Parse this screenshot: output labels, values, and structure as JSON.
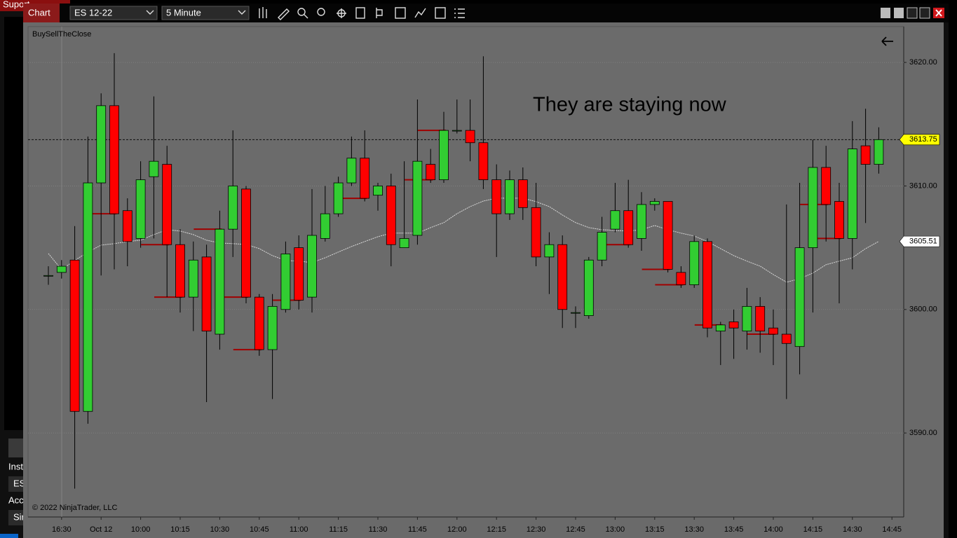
{
  "window": {
    "tab": "Chart",
    "instrument": "ES 12-22",
    "interval": "5 Minute"
  },
  "background_window": {
    "title": "Suport",
    "labels": [
      "Inst",
      "ES",
      "Acco",
      "Sir"
    ]
  },
  "chart_data": {
    "type": "candlestick",
    "indicator_label": "BuySellTheClose",
    "copyright": "© 2022 NinjaTrader, LLC",
    "annotation": "They are staying now",
    "categories": [
      null,
      "16:30",
      null,
      null,
      "Oct 12",
      null,
      null,
      "10:00",
      null,
      null,
      "10:15",
      null,
      null,
      "10:30",
      null,
      null,
      "10:45",
      null,
      null,
      "11:00",
      null,
      null,
      "11:15",
      null,
      null,
      "11:30",
      null,
      null,
      "11:45",
      null,
      null,
      "12:00",
      null,
      null,
      "12:15",
      null,
      null,
      "12:30",
      null,
      null,
      "12:45",
      null,
      null,
      "13:00",
      null,
      null,
      "13:15",
      null,
      null,
      "13:30",
      null,
      null,
      "13:45",
      null,
      null,
      "14:00",
      null,
      null,
      "14:15",
      null,
      null,
      "14:30",
      null,
      null,
      "14:45"
    ],
    "open": [
      3602.75,
      3603,
      3604,
      3591.75,
      3610.25,
      3616.5,
      3608,
      3605.75,
      3610.75,
      3611.75,
      3605.25,
      3601,
      3604.25,
      3598,
      3606.5,
      3609.75,
      3601,
      3596.75,
      3600,
      3605,
      3601,
      3605.75,
      3607.75,
      3610.25,
      3612.25,
      3609.25,
      3610,
      3605,
      3606,
      3611.75,
      3610.5,
      3614.5,
      3614.5,
      3613.5,
      3610.5,
      3607.75,
      3610.5,
      3608.25,
      3604.25,
      3605.25,
      3599.75,
      3599.5,
      3604,
      3606.5,
      3608,
      3605.75,
      3608.5,
      3608.75,
      3603,
      3602,
      3605.5,
      3598.25,
      3599,
      3598.25,
      3600.25,
      3598.5,
      3598,
      3597,
      3605,
      3611.5,
      3608.75,
      3605.75,
      3613.25,
      3611.75,
      null
    ],
    "high": [
      3603.5,
      3604,
      3606.75,
      3614,
      3617.5,
      3620.75,
      3609,
      3612,
      3617.25,
      3613.25,
      3606.5,
      3605.5,
      3605.25,
      3608,
      3614.5,
      3610,
      3601.25,
      3601.25,
      3605.5,
      3606,
      3609.75,
      3610,
      3610.75,
      3614,
      3614.5,
      3610.25,
      3611,
      3612,
      3617,
      3613,
      3616,
      3617,
      3617,
      3620.5,
      3611.75,
      3611.25,
      3611.5,
      3610.25,
      3606.25,
      3606,
      3600.25,
      3604.25,
      3607.5,
      3610.25,
      3610.5,
      3609.5,
      3609,
      3608.75,
      3603.5,
      3606,
      3605.75,
      3599,
      3600,
      3601.75,
      3601,
      3600,
      3608.5,
      3610.25,
      3613.75,
      3613.25,
      3610.25,
      3615.25,
      3616.25,
      3614.75,
      null
    ],
    "low": [
      3602,
      3602.5,
      3585.5,
      3590.75,
      3602.75,
      3603.25,
      3603.5,
      3605,
      3605.75,
      3601,
      3599.75,
      3598.25,
      3592.5,
      3596.75,
      3604.25,
      3600.5,
      3596.25,
      3592.75,
      3599.75,
      3600,
      3599.75,
      3605.5,
      3607.5,
      3610,
      3608.75,
      3608,
      3603.5,
      3605,
      3605.25,
      3610.25,
      3610.25,
      3614.25,
      3612,
      3609.75,
      3604.25,
      3607.25,
      3607.25,
      3603.5,
      3601.25,
      3598.5,
      3598.5,
      3599.25,
      3603.5,
      3606.25,
      3605,
      3604.75,
      3608,
      3603,
      3601.75,
      3601.75,
      3597.75,
      3595.5,
      3596,
      3596.75,
      3596.5,
      3595.5,
      3592.75,
      3594.75,
      3599.75,
      3605.5,
      3600.5,
      3603.25,
      3607,
      3611,
      null
    ],
    "close": [
      3602.75,
      3603.5,
      3591.75,
      3610.25,
      3616.5,
      3607.75,
      3605.5,
      3610.5,
      3612,
      3605.25,
      3601,
      3604,
      3598.25,
      3606.5,
      3610,
      3601,
      3596.75,
      3600.25,
      3604.5,
      3600.75,
      3606,
      3607.75,
      3610.25,
      3612.25,
      3609,
      3610,
      3605.25,
      3605.75,
      3612,
      3610.5,
      3614.5,
      3614.5,
      3613.5,
      3610.5,
      3607.75,
      3610.5,
      3608.25,
      3604.25,
      3605.25,
      3600,
      3599.75,
      3604,
      3606.25,
      3608,
      3605.25,
      3608.5,
      3608.75,
      3603.25,
      3602,
      3605.5,
      3598.5,
      3598.75,
      3598.5,
      3600.25,
      3598.25,
      3598,
      3597.25,
      3605,
      3611.5,
      3608.5,
      3605.75,
      3613,
      3611.75,
      3613.75,
      null
    ],
    "levels": [
      null,
      null,
      null,
      null,
      null,
      3607.75,
      null,
      null,
      null,
      3605.25,
      3601,
      null,
      null,
      3606.5,
      null,
      3601,
      3596.75,
      null,
      null,
      3600.75,
      null,
      null,
      null,
      null,
      3609,
      null,
      null,
      null,
      null,
      3610.5,
      3614.5,
      null,
      null,
      null,
      null,
      null,
      null,
      null,
      null,
      null,
      null,
      null,
      null,
      null,
      3605.25,
      null,
      null,
      3603.25,
      3602,
      null,
      null,
      3598.75,
      null,
      null,
      null,
      3598,
      null,
      null,
      null,
      3608.5,
      3605.75,
      null,
      null,
      null,
      null
    ],
    "ma": [
      3604.53,
      3603.23,
      3603.97,
      3604.65,
      3605.21,
      3605.33,
      3605.5,
      3605.61,
      3606.06,
      3606.46,
      3606.35,
      3606.06,
      3605.61,
      3605.38,
      3605.33,
      3605.27,
      3604.93,
      3604.36,
      3603.97,
      3603.91,
      3603.8,
      3604.19,
      3604.65,
      3605.1,
      3605.5,
      3605.89,
      3606.18,
      3606.18,
      3606.18,
      3606.63,
      3607.03,
      3607.76,
      3608.33,
      3608.78,
      3609.01,
      3609.01,
      3609.01,
      3608.73,
      3608.33,
      3607.65,
      3607.03,
      3606.63,
      3606.46,
      3606.4,
      3606.35,
      3606.46,
      3606.8,
      3606.46,
      3606.18,
      3605.95,
      3605.5,
      3604.93,
      3604.36,
      3603.91,
      3603.51,
      3602.83,
      3602.21,
      3602.49,
      3602.95,
      3603.63,
      3603.91,
      3604.19,
      3604.93,
      3605.51,
      null
    ],
    "up_color": "#32cd32",
    "down_color": "#ff0000",
    "level_color": "#a00000",
    "ma_color": "#d8d8d8",
    "current_price": 3613.75,
    "ma_price": 3605.51,
    "ylim": [
      3583.2,
      3622.9
    ],
    "yticks": [
      {
        "value": 3590,
        "label": "3590.00"
      },
      {
        "value": 3600,
        "label": "3600.00"
      },
      {
        "value": 3610,
        "label": "3610.00"
      },
      {
        "value": 3620,
        "label": "3620.00"
      }
    ],
    "grid": true
  }
}
